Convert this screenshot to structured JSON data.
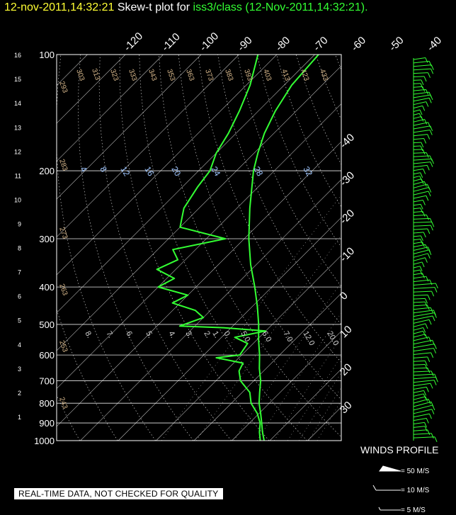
{
  "header": {
    "timestamp": "12-nov-2011,14:32:21",
    "prefix": "Skew-t plot for ",
    "station": "iss3/class",
    "run": "(12-Nov-2011,14:32:21)",
    "suffix": "."
  },
  "winds_profile": {
    "title": "WINDS PROFILE",
    "legend": [
      "= 50 M/S",
      "= 10 M/S",
      "= 5 M/S"
    ]
  },
  "disclaimer": "REAL-TIME DATA, NOT CHECKED FOR QUALITY",
  "colors": {
    "yellow": "#ffff33",
    "green": "#33ff33",
    "grid": "#ffffff",
    "dry_adiabat": "#d9b98c",
    "mixing_ratio": "#9fc6ff"
  },
  "chart_data": {
    "type": "line",
    "plot": "skew-t",
    "pressure_labels": [
      100,
      200,
      300,
      400,
      500,
      600,
      700,
      800,
      900,
      1000
    ],
    "height_km_labels": [
      1,
      2,
      3,
      4,
      5,
      6,
      7,
      8,
      9,
      10,
      11,
      12,
      13,
      14,
      15,
      16
    ],
    "top_temperature_labels": [
      -120,
      -110,
      -100,
      -90,
      -80,
      -70,
      -60,
      -50,
      -40
    ],
    "right_temperature_labels": [
      30,
      20,
      10,
      0,
      -10,
      -20,
      -30,
      -40
    ],
    "dry_adiabat_labels": [
      "293",
      "303",
      "313",
      "323",
      "333",
      "343",
      "353",
      "363",
      "373",
      "383",
      "393",
      "403",
      "413",
      "423",
      "433",
      "283",
      "273",
      "263",
      "253",
      "243"
    ],
    "mixing_ratio_labels": [
      "4",
      "8",
      "12",
      "16",
      "20",
      "24",
      "28",
      "32"
    ],
    "lower_labels": [
      "8.",
      "7.",
      "6.",
      "5.",
      "4.",
      "3.",
      "2.",
      "1.",
      "0.",
      "5.0",
      "6.0",
      "7.0",
      "12.0",
      "20.0"
    ],
    "temperature_profile": {
      "p": [
        1000,
        950,
        900,
        850,
        800,
        750,
        700,
        650,
        600,
        550,
        500,
        450,
        400,
        350,
        300,
        250,
        200,
        180,
        160,
        140,
        120,
        100
      ],
      "t": [
        18.5,
        15.8,
        13.2,
        10.4,
        7.3,
        4.6,
        1.8,
        -1.8,
        -5.3,
        -9.4,
        -13.6,
        -18.6,
        -24.5,
        -31.5,
        -38.8,
        -46.6,
        -55.5,
        -59.0,
        -62.5,
        -65.5,
        -68.0,
        -69.0
      ]
    },
    "dewpoint_profile": {
      "p": [
        1000,
        950,
        900,
        850,
        800,
        750,
        700,
        660,
        630,
        610,
        600,
        560,
        540,
        520,
        510,
        505,
        480,
        460,
        440,
        420,
        400,
        380,
        360,
        340,
        320,
        300,
        280,
        250,
        220,
        200,
        180,
        160,
        140,
        120,
        100
      ],
      "td": [
        17.5,
        15.0,
        12.8,
        9.5,
        5.2,
        2.0,
        -3.5,
        -6.5,
        -7.5,
        -16.0,
        -10.5,
        -11.5,
        -16.5,
        -10.0,
        -22.0,
        -34.0,
        -30.0,
        -34.0,
        -42.0,
        -40.0,
        -50.0,
        -48.0,
        -55.0,
        -52.0,
        -56.0,
        -45.0,
        -60.0,
        -64.0,
        -66.0,
        -67.0,
        -70.0,
        -72.0,
        -75.0,
        -79.0,
        -85.0
      ]
    }
  }
}
